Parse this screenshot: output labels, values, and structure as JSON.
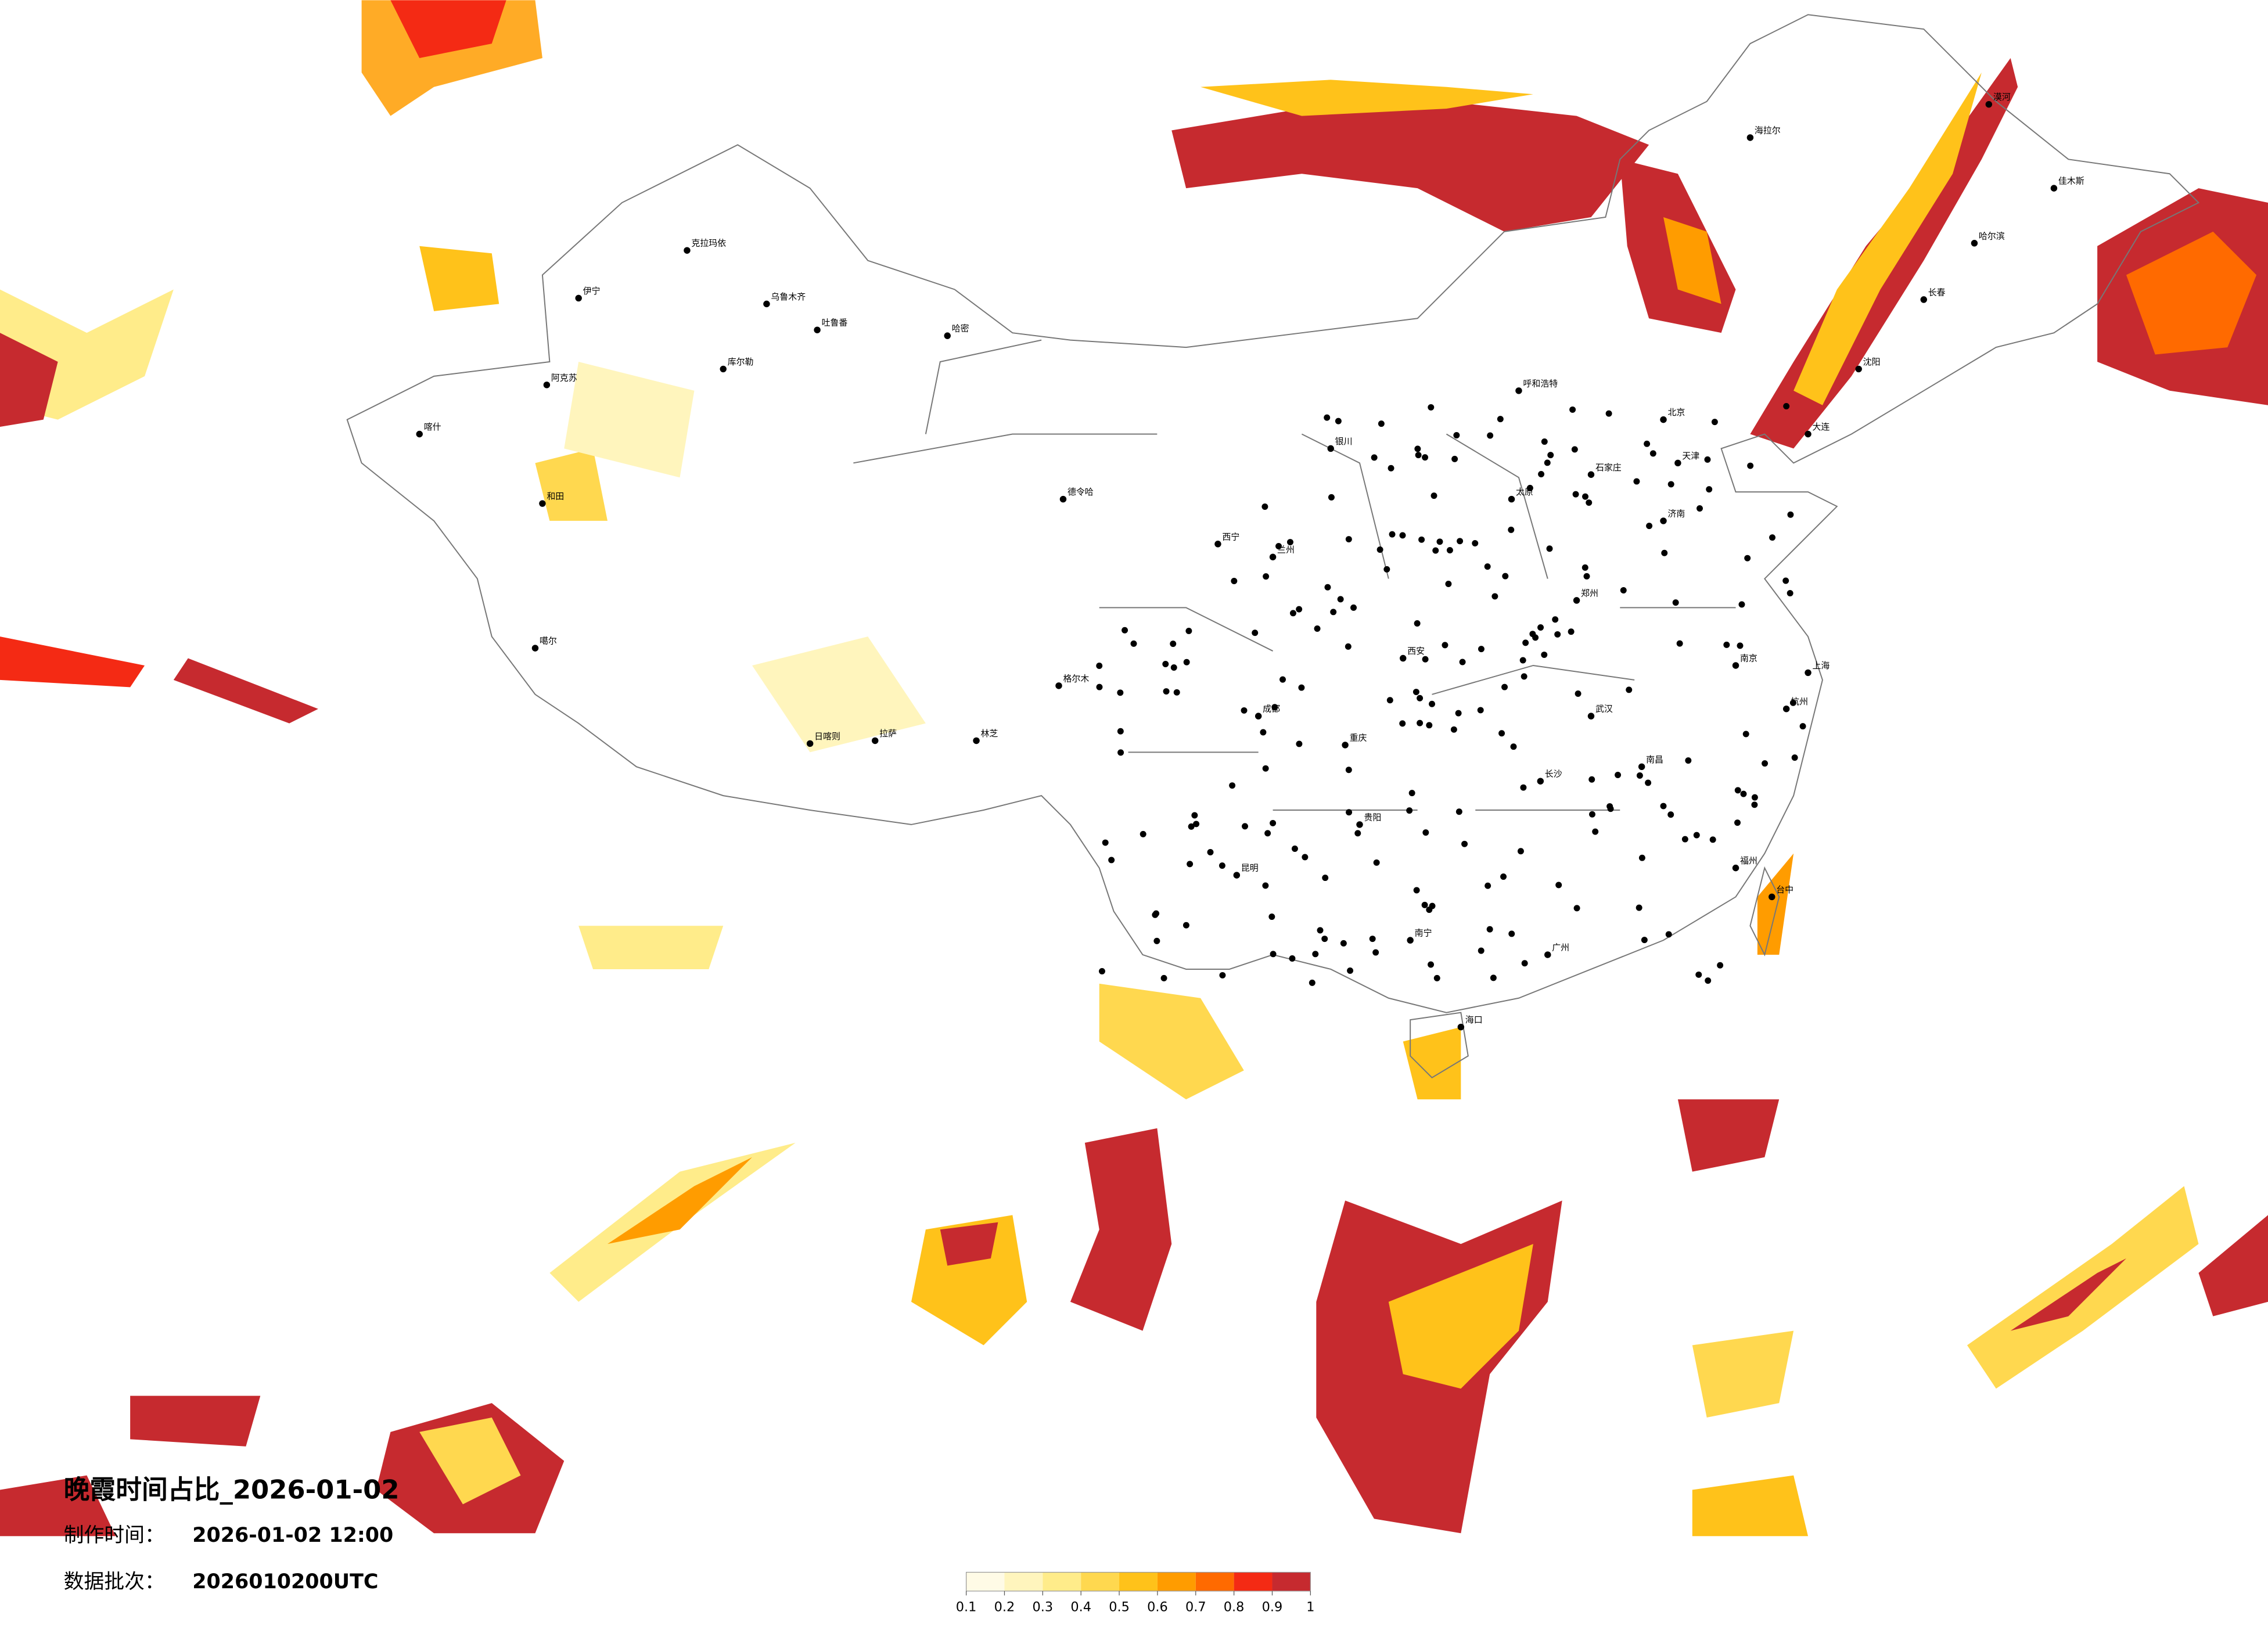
{
  "title": "晚霞时间占比_2026-01-02",
  "production_time": {
    "label": "制作时间：",
    "value": "2026-01-02 12:00"
  },
  "data_batch": {
    "label": "数据批次：",
    "value": "2026010200UTC"
  },
  "legend": {
    "colors": [
      "#fffbe6",
      "#fff5bd",
      "#ffec8a",
      "#ffd84f",
      "#ffc21a",
      "#ff9c00",
      "#ff6a00",
      "#f42a14",
      "#c62a2f"
    ],
    "ticks": [
      0.1,
      0.2,
      0.3,
      0.4,
      0.5,
      0.6,
      0.7,
      0.8,
      0.9,
      1
    ]
  },
  "cities": [
    "克拉玛依",
    "乌鲁木齐",
    "吐鲁番",
    "哈密",
    "伊宁",
    "库尔勒",
    "阿克苏",
    "喀什",
    "和田",
    "噶尔",
    "日喀则",
    "拉萨",
    "林芝",
    "格尔木",
    "德令哈",
    "西宁",
    "兰州",
    "银川",
    "呼和浩特",
    "北京",
    "天津",
    "石家庄",
    "太原",
    "西安",
    "郑州",
    "济南",
    "南京",
    "上海",
    "杭州",
    "武汉",
    "长沙",
    "南昌",
    "福州",
    "广州",
    "南宁",
    "海口",
    "贵阳",
    "昆明",
    "成都",
    "重庆",
    "哈尔滨",
    "长春",
    "沈阳",
    "大连",
    "台中",
    "漠河",
    "海拉尔",
    "佳木斯"
  ]
}
